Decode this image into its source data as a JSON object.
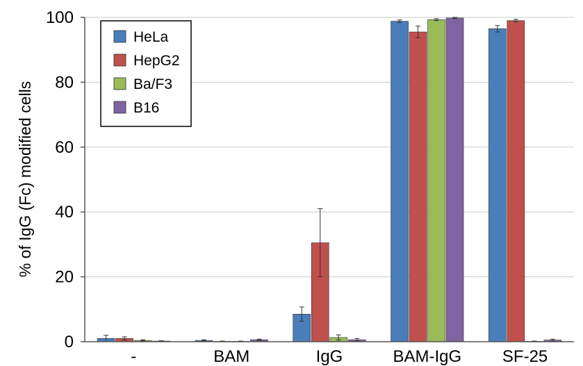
{
  "chart_data": {
    "type": "bar",
    "title": "",
    "xlabel": "",
    "ylabel": "% of IgG (Fc) modified cells",
    "categories": [
      "-",
      "BAM",
      "IgG",
      "BAM-IgG",
      "SF-25"
    ],
    "ylim": [
      0,
      100
    ],
    "yticks": [
      0,
      20,
      40,
      60,
      80,
      100
    ],
    "grid": true,
    "legend_position": "top-left",
    "series": [
      {
        "name": "HeLa",
        "color": "#4a7ebb",
        "values": [
          1.0,
          0.4,
          8.5,
          98.8,
          96.5
        ],
        "errors": [
          1.0,
          0.2,
          2.2,
          0.4,
          1.0
        ]
      },
      {
        "name": "HepG2",
        "color": "#c0504d",
        "values": [
          1.0,
          0.1,
          30.5,
          95.5,
          99.0
        ],
        "errors": [
          0.5,
          0.1,
          10.5,
          1.8,
          0.4
        ]
      },
      {
        "name": "Ba/F3",
        "color": "#9bbb59",
        "values": [
          0.4,
          0.1,
          1.3,
          99.3,
          0.1
        ],
        "errors": [
          0.2,
          0.1,
          0.8,
          0.3,
          0.1
        ]
      },
      {
        "name": "B16",
        "color": "#8064a2",
        "values": [
          0.2,
          0.6,
          0.6,
          99.8,
          0.5
        ],
        "errors": [
          0.1,
          0.2,
          0.4,
          0.2,
          0.3
        ]
      }
    ]
  }
}
